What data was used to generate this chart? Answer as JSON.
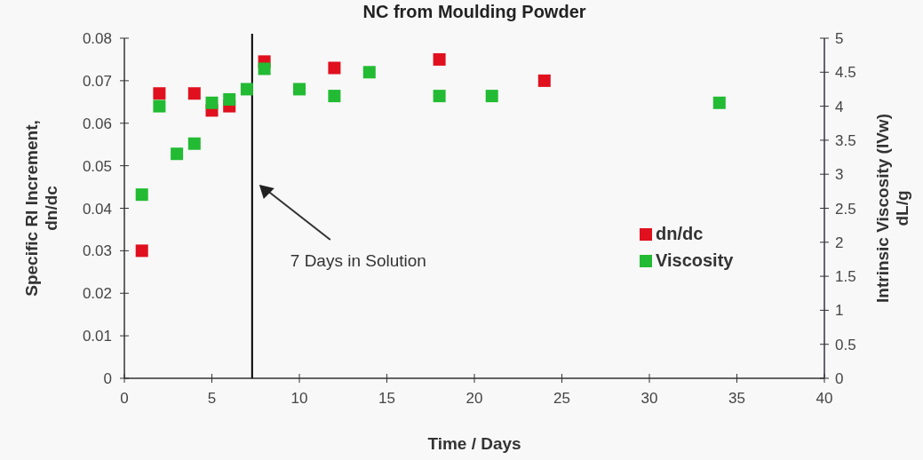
{
  "chart_data": {
    "type": "scatter",
    "title": "NC from Moulding Powder",
    "xlabel": "Time / Days",
    "ylabel": "Specific RI Increment,\ndn/dc",
    "y2label": "Intrinsic Viscosity (IVw)\ndL/g",
    "xlim": [
      0,
      40
    ],
    "xticks": [
      0,
      5,
      10,
      15,
      20,
      25,
      30,
      35,
      40
    ],
    "ylim": [
      0,
      0.08
    ],
    "yticks": [
      0,
      0.01,
      0.02,
      0.03,
      0.04,
      0.05,
      0.06,
      0.07,
      0.08
    ],
    "y2lim": [
      0,
      5
    ],
    "y2ticks": [
      0,
      0.5,
      1,
      1.5,
      2,
      2.5,
      3,
      3.5,
      4,
      4.5,
      5
    ],
    "series": [
      {
        "name": "dn/dc",
        "color": "#e0101e",
        "x": [
          1,
          2,
          4,
          5,
          6,
          8,
          12,
          18,
          24
        ],
        "values": [
          0.03,
          0.067,
          0.067,
          0.063,
          0.064,
          0.0745,
          0.073,
          0.075,
          0.07
        ]
      },
      {
        "name": "Viscosity",
        "color": "#22bb33",
        "axis": "y2",
        "x": [
          1,
          2,
          3,
          4,
          5,
          6,
          7,
          8,
          10,
          12,
          14,
          18,
          21,
          34
        ],
        "values": [
          2.7,
          4.0,
          3.3,
          3.45,
          4.05,
          4.1,
          4.25,
          4.55,
          4.25,
          4.15,
          4.5,
          4.15,
          4.15,
          4.05
        ]
      }
    ],
    "ref_lines": [
      {
        "axis": "x",
        "value": 7.3,
        "color": "#000000"
      }
    ],
    "annotations": [
      "7 Days in Solution"
    ],
    "marker": "square",
    "legend": "right",
    "grid": false
  }
}
